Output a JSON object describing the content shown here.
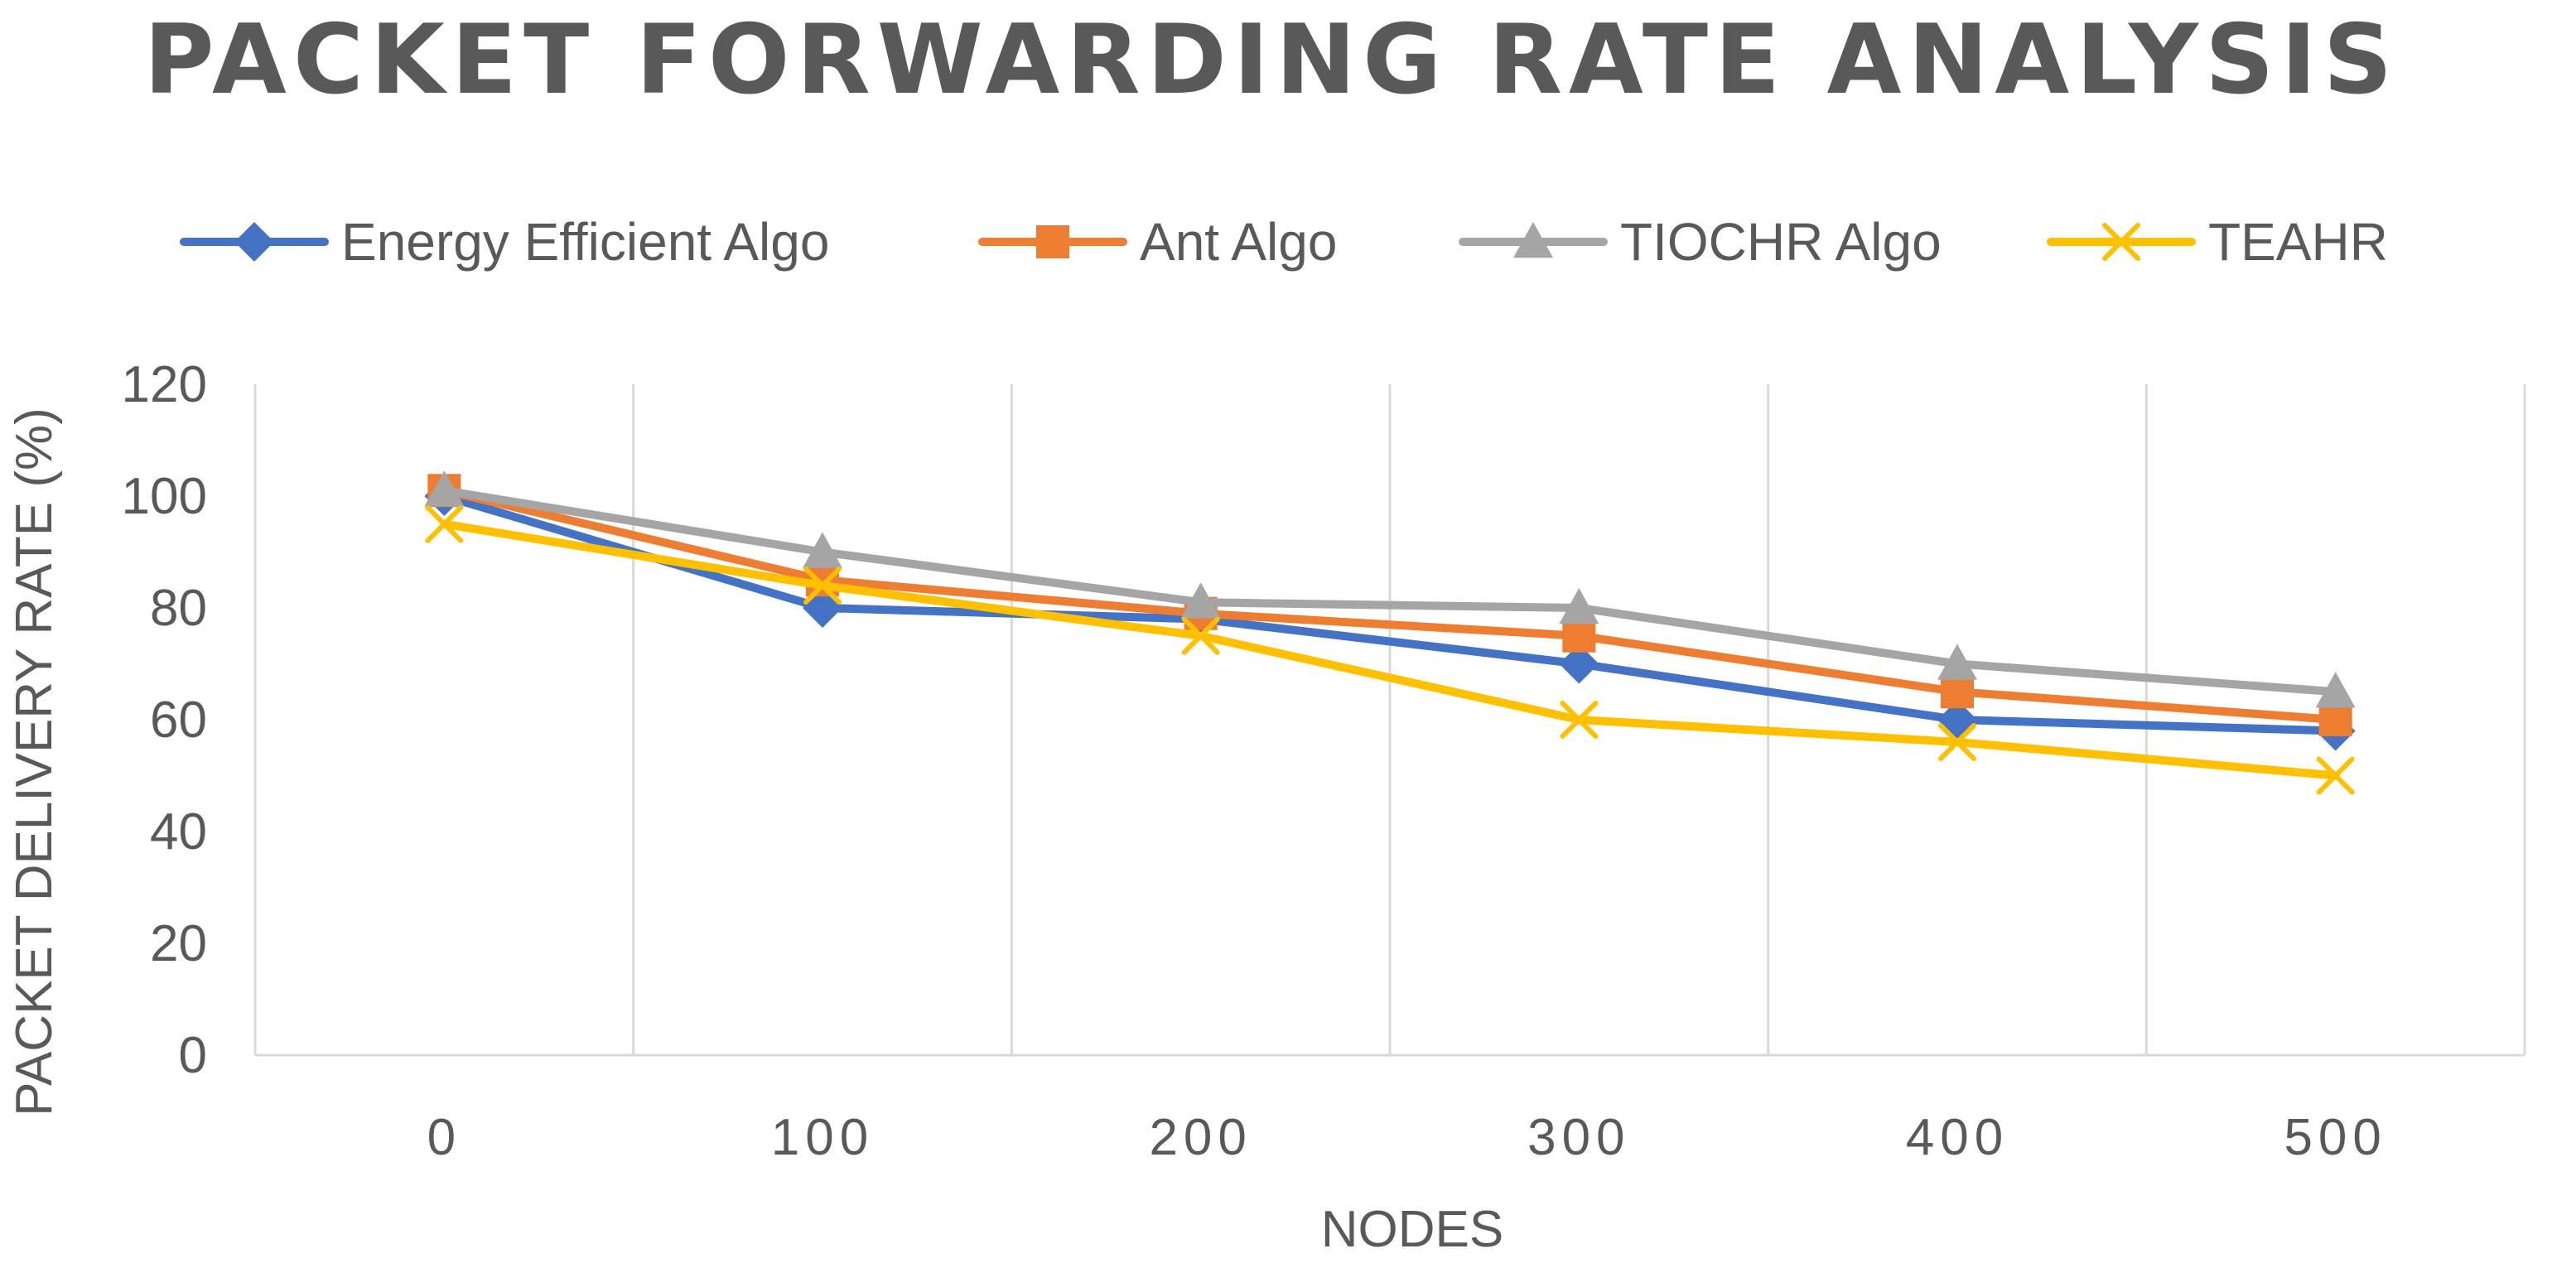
{
  "chart_data": {
    "type": "line",
    "title": "PACKET FORWARDING RATE ANALYSIS",
    "xlabel": "NODES",
    "ylabel": "PACKET DELIVERY RATE (%)",
    "categories": [
      "0",
      "100",
      "200",
      "300",
      "400",
      "500"
    ],
    "ylim": [
      0,
      120
    ],
    "yticks": [
      0,
      20,
      40,
      60,
      80,
      100,
      120
    ],
    "grid": "vertical",
    "legend_position": "top",
    "series": [
      {
        "name": "Energy Efficient Algo",
        "color": "#4472C4",
        "marker": "diamond",
        "values": [
          100,
          80,
          78,
          70,
          60,
          58
        ]
      },
      {
        "name": "Ant Algo",
        "color": "#ED7D31",
        "marker": "square",
        "values": [
          101,
          85,
          79,
          75,
          65,
          60
        ]
      },
      {
        "name": "TIOCHR Algo",
        "color": "#A5A5A5",
        "marker": "triangle",
        "values": [
          101,
          90,
          81,
          80,
          70,
          65
        ]
      },
      {
        "name": "TEAHR",
        "color": "#FFC000",
        "marker": "x",
        "values": [
          95,
          84,
          75,
          60,
          56,
          50
        ]
      }
    ]
  }
}
